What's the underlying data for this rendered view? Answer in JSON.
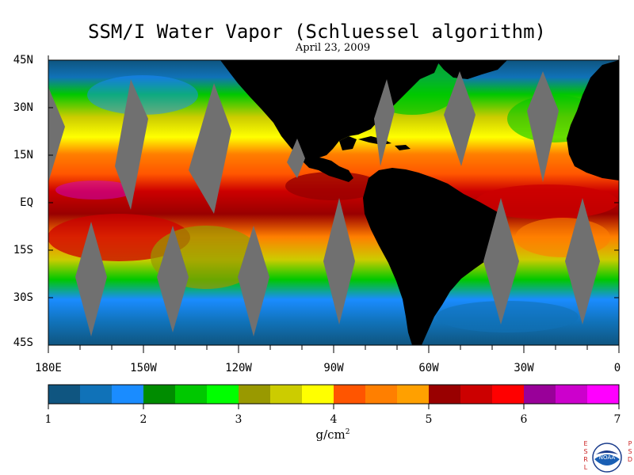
{
  "title": "SSM/I Water Vapor (Schluessel algorithm)",
  "subtitle": "April 23, 2009",
  "map": {
    "lat_labels": [
      "45N",
      "30N",
      "15N",
      "EQ",
      "15S",
      "30S",
      "45S"
    ],
    "lon_labels": [
      "180E",
      "150W",
      "120W",
      "90W",
      "60W",
      "30W",
      "0"
    ],
    "land_color": "#000000",
    "no_data_color": "#707070"
  },
  "colorbar": {
    "colors": [
      "#0f5580",
      "#1072b8",
      "#1a8cff",
      "#008c00",
      "#00c800",
      "#00ff00",
      "#999900",
      "#cccc00",
      "#ffff00",
      "#ff5500",
      "#ff7f00",
      "#ffa000",
      "#990000",
      "#cc0000",
      "#ff0000",
      "#990099",
      "#cc00cc",
      "#ff00ff"
    ],
    "tick_labels": [
      "1",
      "2",
      "3",
      "4",
      "5",
      "6",
      "7"
    ],
    "min": 1,
    "max": 7,
    "units": "g/cm",
    "units_exponent": "2"
  },
  "logo": {
    "left_letters": "ESRL",
    "right_letters": "PSD",
    "center_text": "NOAA"
  }
}
